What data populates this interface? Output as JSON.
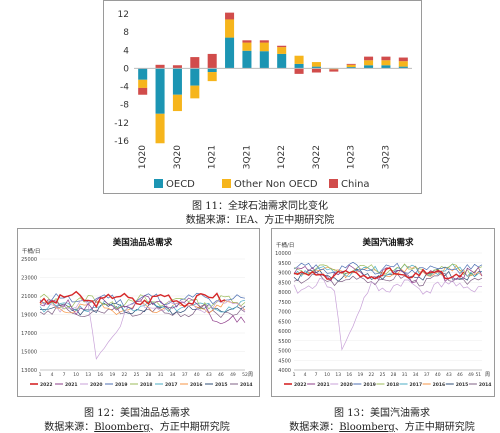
{
  "chart_data": [
    {
      "type": "bar",
      "stacked": true,
      "title": "",
      "ylim": [
        -16,
        12
      ],
      "yticks": [
        12,
        8,
        4,
        0,
        -4,
        -8,
        -12,
        -16
      ],
      "categories": [
        "1Q20",
        "2Q20",
        "3Q20",
        "4Q20",
        "1Q21",
        "2Q21",
        "3Q21",
        "4Q21",
        "1Q22",
        "2Q22",
        "3Q22",
        "4Q22",
        "1Q23",
        "2Q23",
        "3Q23",
        "4Q23"
      ],
      "categories_labeled": [
        "1Q20",
        "3Q20",
        "1Q21",
        "3Q21",
        "1Q22",
        "3Q22",
        "1Q23",
        "3Q23"
      ],
      "series": [
        {
          "name": "OECD",
          "color": "#1c95b3",
          "values": [
            -2.5,
            -10,
            -5.8,
            -3.8,
            -0.8,
            6.8,
            3.9,
            3.8,
            3.2,
            1.0,
            0.4,
            0.1,
            0.3,
            0.7,
            0.7,
            0.4
          ]
        },
        {
          "name": "Other Non OECD",
          "color": "#f6b51c",
          "values": [
            -1.8,
            -6.5,
            -3.6,
            -2.8,
            -2.0,
            4.0,
            1.8,
            1.9,
            1.5,
            1.8,
            1.0,
            -0.2,
            0.5,
            1.1,
            1.1,
            1.2
          ]
        },
        {
          "name": "China",
          "color": "#d14c4b",
          "values": [
            -1.5,
            0.8,
            0.7,
            2.5,
            3.2,
            1.5,
            0.5,
            0.5,
            0.3,
            -1.2,
            -0.9,
            -0.5,
            0.2,
            0.8,
            0.8,
            0.8
          ]
        }
      ],
      "legend_position": "bottom",
      "caption": "图 11：全球石油需求同比变化",
      "source": "数据来源：IEA、方正中期研究院"
    },
    {
      "type": "line",
      "title": "美国油品总需求",
      "ylabel": "千桶/日",
      "xlabel": "周",
      "ylim": [
        13000,
        25000
      ],
      "yticks": [
        25000,
        23000,
        21000,
        19000,
        17000,
        15000,
        13000
      ],
      "xticks": [
        1,
        4,
        7,
        10,
        13,
        16,
        19,
        22,
        25,
        28,
        31,
        34,
        37,
        40,
        43,
        46,
        49,
        52
      ],
      "xtick_labels": [
        "1",
        "4",
        "7",
        "10",
        "13",
        "16",
        "19",
        "22",
        "25",
        "28",
        "31",
        "34",
        "37",
        "40",
        "43",
        "46",
        "49",
        "52"
      ],
      "series": [
        {
          "name": "2022",
          "color": "#d62728",
          "bold": true,
          "base": 20700,
          "amp": 900,
          "seed": 3,
          "len": 47
        },
        {
          "name": "2021",
          "color": "#8e3c8a",
          "base": 20000,
          "amp": 1200,
          "seed": 5,
          "len": 52,
          "ramp": -2500
        },
        {
          "name": "2020",
          "color": "#c8a2d8",
          "base": 20000,
          "amp": 900,
          "seed": 7,
          "len": 52,
          "dip": [
            13,
            24,
            14200
          ]
        },
        {
          "name": "2019",
          "color": "#4c6fb3",
          "base": 20600,
          "amp": 900,
          "seed": 11,
          "len": 52
        },
        {
          "name": "2018",
          "color": "#9bbb59",
          "base": 20400,
          "amp": 900,
          "seed": 13,
          "len": 52
        },
        {
          "name": "2017",
          "color": "#4bacc6",
          "base": 19900,
          "amp": 800,
          "seed": 17,
          "len": 52
        },
        {
          "name": "2016",
          "color": "#f79646",
          "base": 19800,
          "amp": 800,
          "seed": 19,
          "len": 52
        },
        {
          "name": "2015",
          "color": "#2c4d75",
          "base": 19600,
          "amp": 800,
          "seed": 23,
          "len": 52
        },
        {
          "name": "2014",
          "color": "#7f6084",
          "base": 19300,
          "amp": 800,
          "seed": 29,
          "len": 52
        }
      ],
      "caption": "图 12：美国油品总需求",
      "source_prefix": "数据来源：",
      "source_link": "Bloomberg",
      "source_suffix": "、方正中期研究院"
    },
    {
      "type": "line",
      "title": "美国汽油需求",
      "ylabel": "千桶/日",
      "xlabel": "周",
      "ylim": [
        4000,
        10000
      ],
      "yticks": [
        10000,
        9500,
        9000,
        8500,
        8000,
        7500,
        7000,
        6500,
        6000,
        5500,
        5000,
        4500,
        4000
      ],
      "xticks": [
        1,
        4,
        7,
        10,
        13,
        16,
        19,
        22,
        25,
        28,
        31,
        34,
        37,
        40,
        43,
        46,
        49,
        51
      ],
      "xtick_labels": [
        "1",
        "4",
        "7",
        "10",
        "13",
        "16",
        "19",
        "22",
        "25",
        "28",
        "31",
        "34",
        "37",
        "40",
        "43",
        "46",
        "49",
        "51"
      ],
      "series": [
        {
          "name": "2022",
          "color": "#d62728",
          "bold": true,
          "base": 8900,
          "amp": 350,
          "seed": 31,
          "len": 47
        },
        {
          "name": "2021",
          "color": "#8e3c8a",
          "base": 8900,
          "amp": 500,
          "seed": 37,
          "len": 52
        },
        {
          "name": "2020",
          "color": "#c8a2d8",
          "base": 8300,
          "amp": 450,
          "seed": 41,
          "len": 52,
          "dip": [
            12,
            22,
            5050
          ]
        },
        {
          "name": "2019",
          "color": "#4c6fb3",
          "base": 9200,
          "amp": 350,
          "seed": 43,
          "len": 52
        },
        {
          "name": "2018",
          "color": "#9bbb59",
          "base": 9150,
          "amp": 350,
          "seed": 47,
          "len": 52
        },
        {
          "name": "2017",
          "color": "#4bacc6",
          "base": 9100,
          "amp": 350,
          "seed": 53,
          "len": 52
        },
        {
          "name": "2016",
          "color": "#f79646",
          "base": 9050,
          "amp": 350,
          "seed": 59,
          "len": 52
        },
        {
          "name": "2015",
          "color": "#2c4d75",
          "base": 8850,
          "amp": 350,
          "seed": 61,
          "len": 52
        },
        {
          "name": "2014",
          "color": "#7f6084",
          "base": 8650,
          "amp": 350,
          "seed": 67,
          "len": 52
        }
      ],
      "caption": "图 13：美国汽油需求",
      "source_prefix": "数据来源：",
      "source_link": "Bloomberg",
      "source_suffix": "、方正中期研究院"
    }
  ]
}
